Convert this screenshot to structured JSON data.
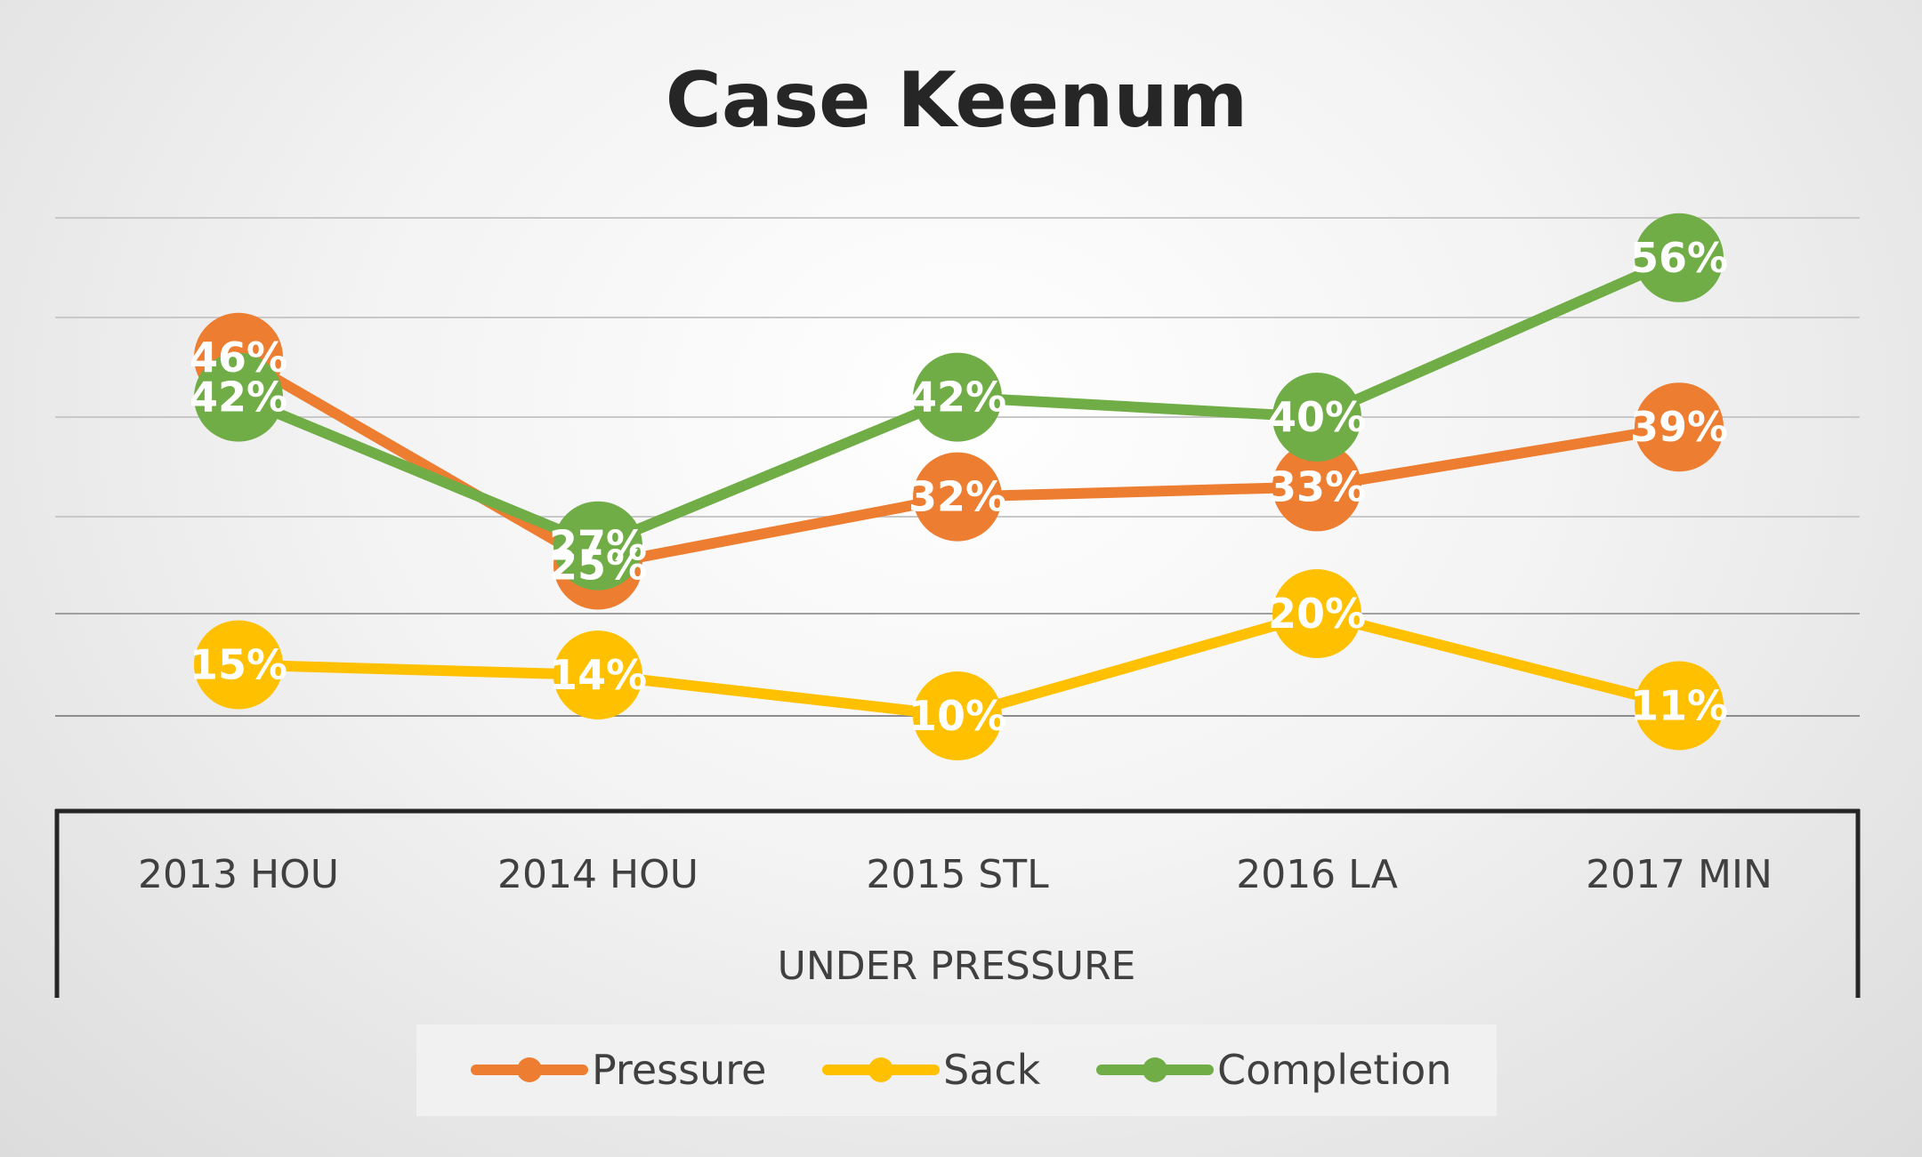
{
  "chart_data": {
    "type": "line",
    "title": "Case Keenum",
    "xlabel": "UNDER PRESSURE",
    "ylabel": "",
    "categories": [
      "2013 HOU",
      "2014 HOU",
      "2015 STL",
      "2016 LA",
      "2017 MIN"
    ],
    "series": [
      {
        "name": "Pressure",
        "color": "#ED7D31",
        "values": [
          46,
          25,
          32,
          33,
          39
        ],
        "labels": [
          "46%",
          "25%",
          "32%",
          "33%",
          "39%"
        ]
      },
      {
        "name": "Sack",
        "color": "#FFC000",
        "values": [
          15,
          14,
          10,
          20,
          11
        ],
        "labels": [
          "15%",
          "14%",
          "10%",
          "20%",
          "11%"
        ]
      },
      {
        "name": "Completion",
        "color": "#70AD47",
        "values": [
          42,
          27,
          42,
          40,
          56
        ],
        "labels": [
          "42%",
          "27%",
          "42%",
          "40%",
          "56%"
        ]
      }
    ],
    "ylim": [
      0,
      60
    ],
    "grid": true,
    "legend": "bottom",
    "data_labels": true
  }
}
